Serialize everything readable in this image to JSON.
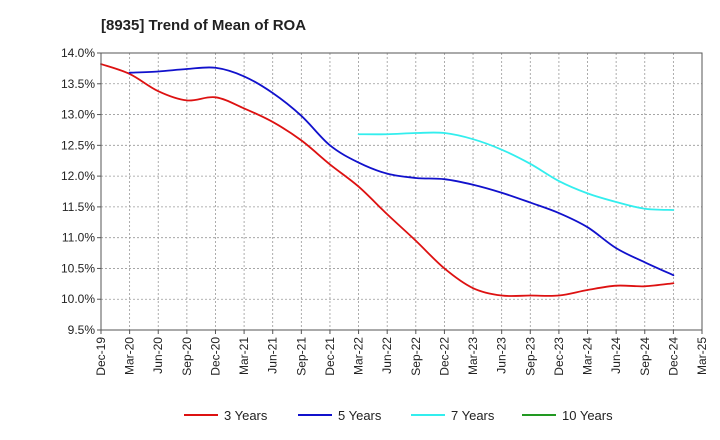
{
  "chart_data": {
    "type": "line",
    "title": "[8935]  Trend of Mean of ROA",
    "xlabel": "",
    "ylabel": "",
    "ylim": [
      9.5,
      14.0
    ],
    "y_ticks": [
      "9.5%",
      "10.0%",
      "10.5%",
      "11.0%",
      "11.5%",
      "12.0%",
      "12.5%",
      "13.0%",
      "13.5%",
      "14.0%"
    ],
    "y_tick_values": [
      9.5,
      10.0,
      10.5,
      11.0,
      11.5,
      12.0,
      12.5,
      13.0,
      13.5,
      14.0
    ],
    "x_ticks": [
      "Dec-19",
      "Mar-20",
      "Jun-20",
      "Sep-20",
      "Dec-20",
      "Mar-21",
      "Jun-21",
      "Sep-21",
      "Dec-21",
      "Mar-22",
      "Jun-22",
      "Sep-22",
      "Dec-22",
      "Mar-23",
      "Jun-23",
      "Sep-23",
      "Dec-23",
      "Mar-24",
      "Jun-24",
      "Sep-24",
      "Dec-24",
      "Mar-25"
    ],
    "grid": true,
    "legend_position": "bottom",
    "series": [
      {
        "name": "3 Years",
        "color": "#dd1111",
        "start_index": 0,
        "values": [
          13.82,
          13.66,
          13.38,
          13.23,
          13.28,
          13.1,
          12.88,
          12.58,
          12.19,
          11.83,
          11.38,
          10.95,
          10.5,
          10.18,
          10.06,
          10.06,
          10.06,
          10.15,
          10.22,
          10.21,
          10.26
        ]
      },
      {
        "name": "5 Years",
        "color": "#1111cc",
        "start_index": 1,
        "values": [
          13.68,
          13.7,
          13.74,
          13.76,
          13.62,
          13.35,
          12.98,
          12.5,
          12.22,
          12.04,
          11.97,
          11.95,
          11.86,
          11.73,
          11.57,
          11.4,
          11.17,
          10.83,
          10.6,
          10.39
        ]
      },
      {
        "name": "7 Years",
        "color": "#33eeee",
        "start_index": 9,
        "values": [
          12.68,
          12.68,
          12.7,
          12.7,
          12.6,
          12.43,
          12.2,
          11.92,
          11.72,
          11.58,
          11.47,
          11.45
        ]
      },
      {
        "name": "10 Years",
        "color": "#229922",
        "start_index": 0,
        "values": []
      }
    ]
  }
}
